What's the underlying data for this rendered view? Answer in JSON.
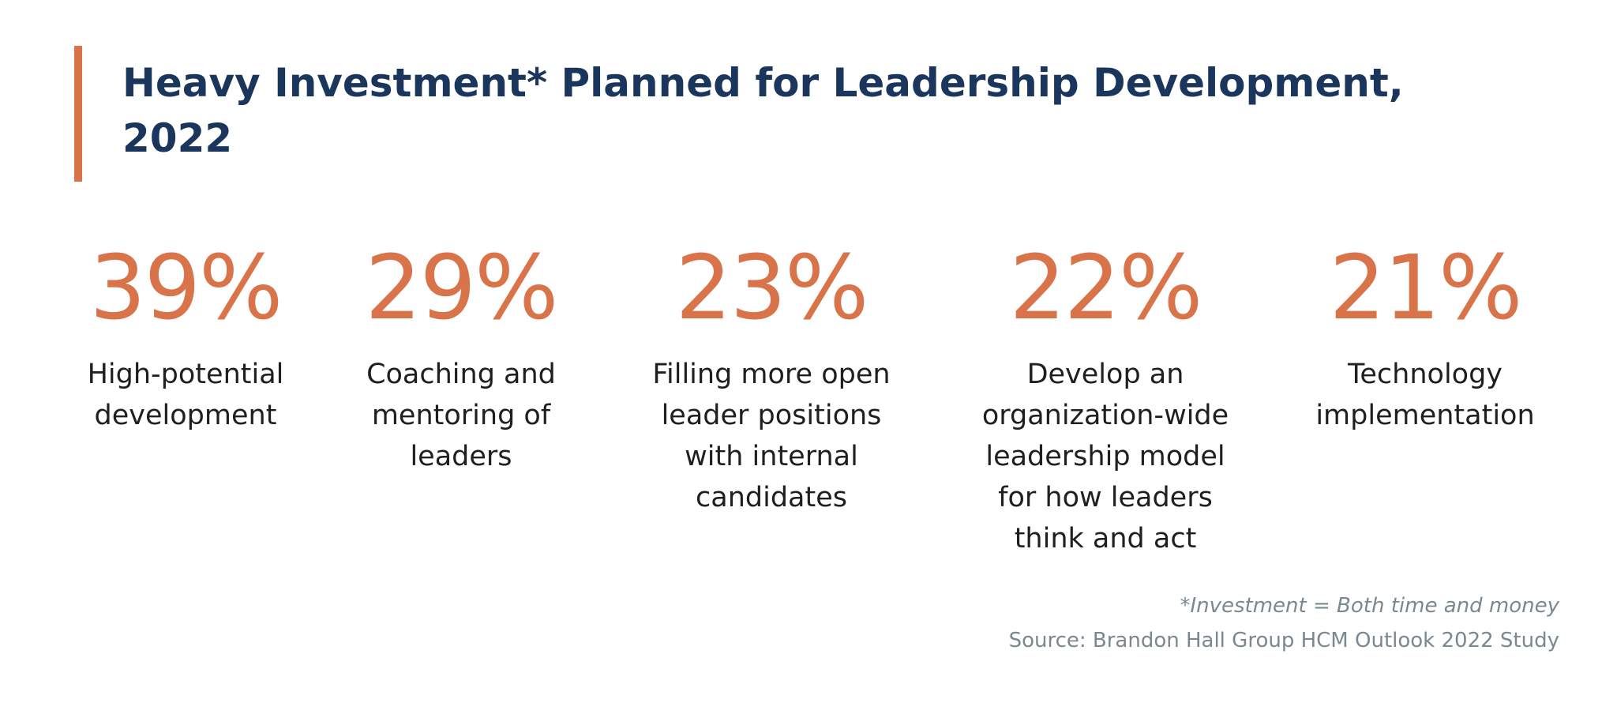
{
  "title": "Heavy Investment* Planned for Leadership Development, 2022",
  "colors": {
    "accent": "#D9744A",
    "title": "#1B365D",
    "footnote": "#7A8890"
  },
  "stats": [
    {
      "value": "39%",
      "label": "High-potential development"
    },
    {
      "value": "29%",
      "label": "Coaching and mentoring of leaders"
    },
    {
      "value": "23%",
      "label": "Filling more open leader positions with internal candidates"
    },
    {
      "value": "22%",
      "label": "Develop an organization-wide leadership model for how leaders think and act"
    },
    {
      "value": "21%",
      "label": "Technology implementation"
    }
  ],
  "footnote": "*Investment = Both time and money",
  "source": "Source: Brandon Hall Group HCM Outlook 2022 Study"
}
